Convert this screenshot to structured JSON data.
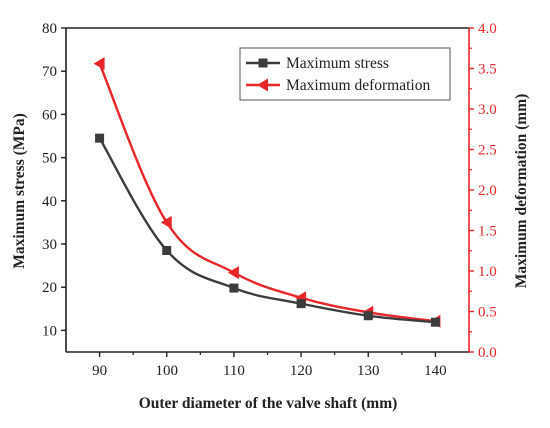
{
  "chart_data": {
    "type": "line",
    "x": [
      90,
      100,
      110,
      120,
      130,
      140
    ],
    "xlabel": "Outer diameter of the valve shaft (mm)",
    "xticks": [
      "90",
      "100",
      "110",
      "120",
      "130",
      "140"
    ],
    "xlim": [
      85,
      145
    ],
    "ylabel_left": "Maximum stress (MPa)",
    "ylim_left": [
      5,
      80
    ],
    "yticks_left": [
      "10",
      "20",
      "30",
      "40",
      "50",
      "60",
      "70",
      "80"
    ],
    "ylabel_right": "Maximum deformation (mm)",
    "ylim_right": [
      0.0,
      4.0
    ],
    "yticks_right": [
      "0.0",
      "0.5",
      "1.0",
      "1.5",
      "2.0",
      "2.5",
      "3.0",
      "3.5",
      "4.0"
    ],
    "series": [
      {
        "name": "Maximum stress",
        "axis": "left",
        "values": [
          54.5,
          28.5,
          19.8,
          16.2,
          13.4,
          11.9
        ],
        "color": "#3c3c3c",
        "marker": "square"
      },
      {
        "name": "Maximum deformation",
        "axis": "right",
        "values": [
          3.56,
          1.6,
          0.98,
          0.67,
          0.49,
          0.38
        ],
        "color": "#e8262a",
        "marker": "triangle-left"
      }
    ],
    "legend_position": "top-right",
    "grid": false
  }
}
